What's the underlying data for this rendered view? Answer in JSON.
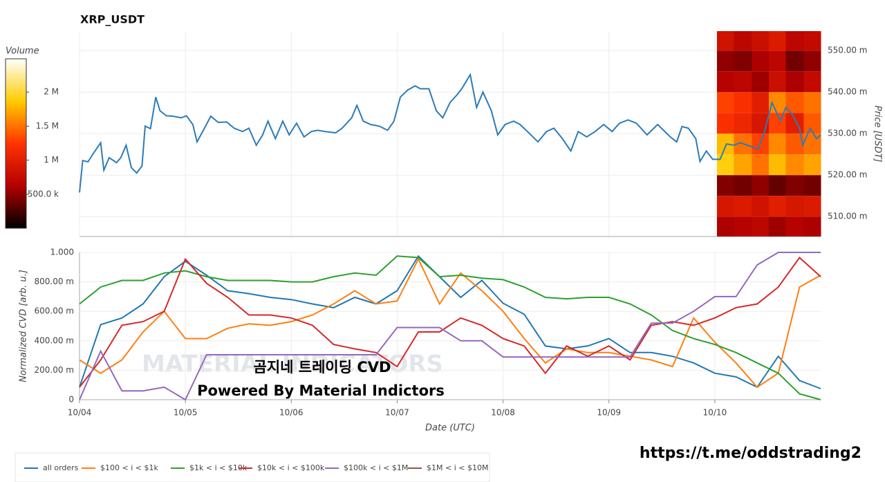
{
  "title": "XRP_USDT",
  "chart_data": [
    {
      "type": "line",
      "ylabel": "Price [USDT]",
      "yaxis_side": "right",
      "grid": true,
      "xlim": [
        0,
        7
      ],
      "xticks": [
        0,
        1,
        2,
        3,
        4,
        5,
        6
      ],
      "ylim": [
        505.2,
        554.7
      ],
      "yticks": [
        {
          "value": 510,
          "label": "510.00 m"
        },
        {
          "value": 520,
          "label": "520.00 m"
        },
        {
          "value": 530,
          "label": "530.00 m"
        },
        {
          "value": 540,
          "label": "540.00 m"
        },
        {
          "value": 550,
          "label": "550.00 m"
        }
      ],
      "heatmap": {
        "xbins": [
          6.02,
          6.18,
          6.35,
          6.51,
          6.67,
          6.84,
          7.0
        ],
        "ybins": [
          505,
          510,
          515,
          520,
          525,
          530,
          535,
          540,
          545,
          550,
          555
        ],
        "z": [
          [
            600000,
            650000,
            700000,
            550000,
            650000,
            600000
          ],
          [
            900000,
            950000,
            850000,
            1000000,
            900000,
            950000
          ],
          [
            450000,
            400000,
            500000,
            350000,
            450000,
            400000
          ],
          [
            1900000,
            1700000,
            1500000,
            1800000,
            1600000,
            1700000
          ],
          [
            1800000,
            1500000,
            1300000,
            1600000,
            1400000,
            1500000
          ],
          [
            1200000,
            1100000,
            900000,
            1300000,
            1000000,
            1400000
          ],
          [
            1300000,
            1200000,
            1000000,
            1600000,
            1400000,
            1500000
          ],
          [
            650000,
            700000,
            550000,
            800000,
            600000,
            750000
          ],
          [
            500000,
            450000,
            600000,
            700000,
            400000,
            500000
          ],
          [
            850000,
            700000,
            800000,
            950000,
            700000,
            750000
          ]
        ],
        "colorscale": [
          "#000000",
          "#b30000",
          "#ff3300",
          "#ffcc00",
          "#ffffff"
        ]
      },
      "colorbar": {
        "title": "Volume",
        "lim": [
          0,
          2490000
        ],
        "ticks": [
          {
            "value": 500000,
            "label": "500.0 k"
          },
          {
            "value": 1000000,
            "label": "1 M"
          },
          {
            "value": 1500000,
            "label": "1.5 M"
          },
          {
            "value": 2000000,
            "label": "2 M"
          }
        ]
      },
      "x": [
        0,
        0.03,
        0.08,
        0.13,
        0.2,
        0.23,
        0.28,
        0.35,
        0.39,
        0.44,
        0.49,
        0.54,
        0.59,
        0.62,
        0.67,
        0.72,
        0.76,
        0.82,
        0.88,
        0.96,
        1.01,
        1.07,
        1.11,
        1.18,
        1.24,
        1.31,
        1.39,
        1.46,
        1.54,
        1.6,
        1.67,
        1.73,
        1.78,
        1.85,
        1.92,
        1.98,
        2.05,
        2.12,
        2.19,
        2.25,
        2.32,
        2.42,
        2.48,
        2.57,
        2.62,
        2.68,
        2.75,
        2.83,
        2.91,
        2.97,
        3.03,
        3.1,
        3.17,
        3.22,
        3.3,
        3.37,
        3.43,
        3.5,
        3.56,
        3.61,
        3.69,
        3.75,
        3.81,
        3.89,
        3.95,
        4.02,
        4.1,
        4.16,
        4.25,
        4.33,
        4.41,
        4.48,
        4.56,
        4.64,
        4.71,
        4.79,
        4.87,
        4.95,
        5.03,
        5.1,
        5.18,
        5.26,
        5.36,
        5.46,
        5.58,
        5.64,
        5.69,
        5.75,
        5.82,
        5.86,
        5.92,
        5.98,
        6.05,
        6.11,
        6.18,
        6.24,
        6.31,
        6.41,
        6.47,
        6.54,
        6.62,
        6.67,
        6.73,
        6.8,
        6.83,
        6.9,
        6.96,
        7.0
      ],
      "series": [
        {
          "color": "#2b7bb9",
          "values": [
            515.8,
            523.5,
            523.2,
            525.2,
            527.8,
            521.2,
            524.2,
            523.0,
            524.2,
            527.2,
            521.8,
            520.5,
            522.2,
            531.8,
            531.2,
            538.8,
            535.5,
            534.3,
            534.2,
            533.8,
            534.3,
            532.2,
            528.0,
            531.3,
            534.2,
            532.7,
            532.8,
            531.3,
            530.5,
            531.3,
            527.2,
            529.7,
            533.0,
            528.8,
            533.0,
            529.7,
            532.5,
            529.2,
            530.5,
            530.8,
            530.5,
            530.2,
            531.3,
            533.8,
            536.8,
            533.0,
            532.2,
            531.8,
            530.8,
            533.0,
            538.8,
            540.5,
            541.5,
            540.8,
            540.8,
            535.5,
            533.8,
            537.5,
            539.2,
            540.8,
            544.2,
            536.3,
            540.0,
            535.5,
            529.7,
            532.2,
            533.0,
            532.2,
            530.0,
            528.0,
            530.5,
            531.3,
            528.8,
            525.8,
            530.5,
            529.2,
            530.5,
            532.2,
            530.5,
            532.5,
            533.3,
            532.5,
            529.7,
            532.2,
            529.2,
            528.0,
            531.7,
            531.3,
            528.8,
            523.3,
            525.8,
            523.8,
            523.8,
            527.5,
            527.2,
            527.8,
            527.2,
            526.3,
            530.5,
            537.5,
            533.0,
            536.3,
            534.7,
            531.3,
            527.2,
            531.3,
            528.8,
            529.7
          ]
        }
      ]
    },
    {
      "type": "line",
      "xlabel": "Date (UTC)",
      "ylabel": "Normalized CVD [arb. u.]",
      "yaxis_side": "left",
      "grid": true,
      "xlim": [
        0,
        7
      ],
      "xticks": [
        {
          "value": 0,
          "label": "10/04"
        },
        {
          "value": 1,
          "label": "10/05"
        },
        {
          "value": 2,
          "label": "10/06"
        },
        {
          "value": 3,
          "label": "10/07"
        },
        {
          "value": 4,
          "label": "10/08"
        },
        {
          "value": 5,
          "label": "10/09"
        },
        {
          "value": 6,
          "label": "10/10"
        }
      ],
      "ylim": [
        0,
        1000
      ],
      "yticks": [
        0,
        {
          "value": 200,
          "label": "200.00 m"
        },
        {
          "value": 400,
          "label": "400.00 m"
        },
        {
          "value": 600,
          "label": "600.00 m"
        },
        {
          "value": 800,
          "label": "800.00 m"
        },
        {
          "value": 1000,
          "label": "1.000"
        }
      ],
      "legend": "bottom-left",
      "x": [
        0,
        0.2,
        0.4,
        0.6,
        0.8,
        1,
        1.2,
        1.4,
        1.6,
        1.8,
        2,
        2.2,
        2.4,
        2.6,
        2.8,
        3,
        3.2,
        3.4,
        3.6,
        3.8,
        4,
        4.2,
        4.4,
        4.6,
        4.8,
        5,
        5.2,
        5.4,
        5.6,
        5.8,
        6,
        6.2,
        6.4,
        6.6,
        6.8,
        7
      ],
      "series": [
        {
          "name": "all orders",
          "color": "#1f77b4",
          "values": [
            85,
            510,
            555,
            650,
            835,
            940,
            845,
            740,
            720,
            695,
            680,
            650,
            625,
            695,
            650,
            740,
            975,
            835,
            695,
            810,
            655,
            580,
            365,
            345,
            365,
            415,
            320,
            320,
            295,
            250,
            180,
            155,
            85,
            295,
            130,
            75
          ]
        },
        {
          "name": "$100 < i < $1k",
          "color": "#ff7f0e",
          "values": [
            270,
            180,
            270,
            460,
            600,
            415,
            415,
            485,
            515,
            505,
            530,
            575,
            650,
            740,
            650,
            670,
            955,
            650,
            860,
            740,
            600,
            415,
            250,
            345,
            320,
            320,
            295,
            270,
            225,
            555,
            390,
            250,
            85,
            180,
            765,
            845
          ]
        },
        {
          "name": "$1k < i < $10k",
          "color": "#2ca02c",
          "values": [
            650,
            765,
            810,
            810,
            860,
            875,
            835,
            810,
            810,
            810,
            800,
            800,
            835,
            860,
            845,
            975,
            965,
            835,
            845,
            825,
            815,
            765,
            695,
            685,
            695,
            695,
            650,
            575,
            470,
            415,
            375,
            320,
            250,
            180,
            40,
            0
          ]
        },
        {
          "name": "$10k < i < $100k",
          "color": "#d62728",
          "values": [
            85,
            270,
            505,
            530,
            600,
            955,
            790,
            695,
            575,
            575,
            555,
            505,
            375,
            345,
            320,
            225,
            460,
            460,
            555,
            505,
            415,
            365,
            180,
            365,
            295,
            365,
            270,
            505,
            530,
            505,
            555,
            625,
            650,
            765,
            965,
            835
          ]
        },
        {
          "name": "$100k < i < $1M",
          "color": "#9467bd",
          "values": [
            0,
            330,
            60,
            60,
            85,
            0,
            305,
            305,
            305,
            305,
            305,
            305,
            305,
            305,
            305,
            490,
            490,
            490,
            400,
            400,
            290,
            290,
            290,
            290,
            290,
            290,
            290,
            520,
            520,
            600,
            700,
            700,
            915,
            1000,
            1000,
            1000
          ]
        },
        {
          "name": "$1M < i < $10M",
          "color": "#8c564b",
          "values": [
            null,
            null,
            null,
            null,
            null,
            null,
            null,
            null,
            null,
            null,
            null,
            null,
            null,
            null,
            null,
            null,
            null,
            null,
            null,
            null,
            null,
            null,
            null,
            null,
            null,
            null,
            null,
            null,
            null,
            null,
            null,
            null,
            null,
            null,
            null,
            null
          ]
        }
      ]
    }
  ],
  "annotations": {
    "watermark": "MATERIAL INDICATORS",
    "caption": "곰지네 트레이딩 CVD",
    "powered": "Powered By Material Indictors",
    "link": "https://t.me/oddstrading2"
  }
}
